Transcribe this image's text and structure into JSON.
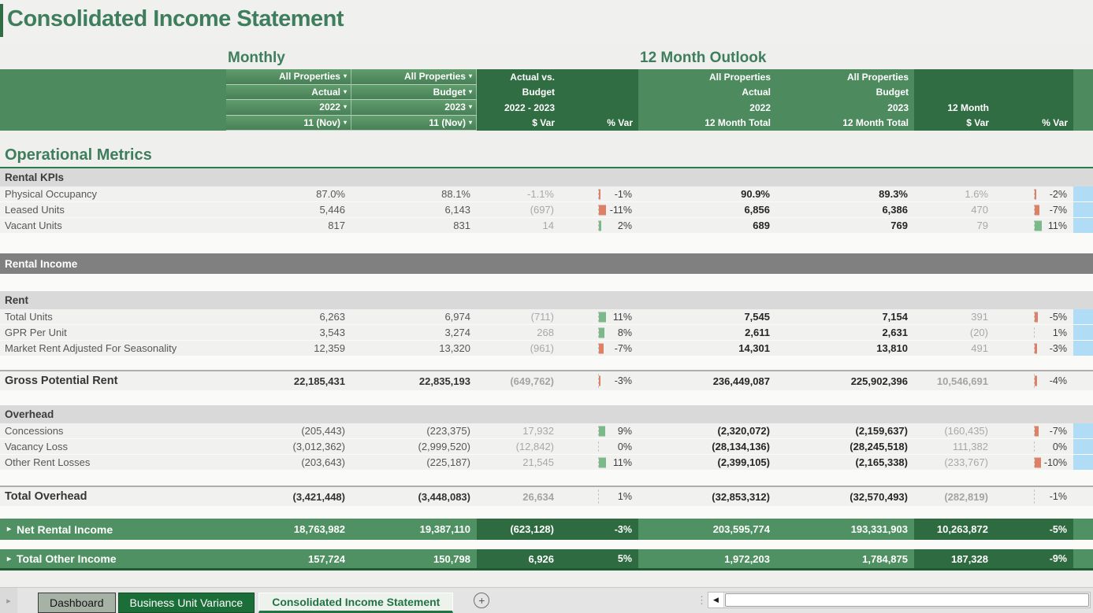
{
  "title": "Consolidated Income Statement",
  "section_labels": {
    "monthly": "Monthly",
    "outlook": "12 Month Outlook"
  },
  "metrics_heading": "Operational Metrics",
  "colors": {
    "accent_green": "#3e7e5c",
    "header_medium": "#4d8b5f",
    "header_dark": "#316d43",
    "row_green_medium": "#4f9162",
    "row_green_dark": "#2f6b41",
    "band_light": "#d9d9d9",
    "band_dark": "#808080",
    "bar_negative": "#dd8066",
    "bar_positive": "#7cb98a",
    "highlight_blue": "#b0dcf6",
    "tab_active_green": "#217346"
  },
  "icons": {
    "dropdown_arrow": "▾",
    "row_expand_arrow": "▸",
    "sheet_nav_arrow": "▸",
    "add_sheet": "+",
    "scroll_left_arrow": "◀",
    "splitter_dots": "⋮"
  },
  "header": {
    "columns": [
      {
        "kind": "blank",
        "tone": "medium",
        "name": "row-label-spacer"
      },
      {
        "kind": "filter",
        "tone": "medium",
        "name": "monthly-actual-filters",
        "items": [
          "All Properties",
          "Actual",
          "2022",
          "11 (Nov)"
        ]
      },
      {
        "kind": "filter",
        "tone": "medium",
        "name": "monthly-budget-filters",
        "items": [
          "All Properties",
          "Budget",
          "2023",
          "11 (Nov)"
        ]
      },
      {
        "kind": "static",
        "tone": "dark",
        "name": "monthly-dollar-var-header",
        "lines": [
          "Actual vs.",
          "Budget",
          "2022 - 2023",
          "$ Var"
        ]
      },
      {
        "kind": "static",
        "tone": "dark",
        "name": "monthly-pct-var-header",
        "lines": [
          "",
          "",
          "",
          "% Var"
        ]
      },
      {
        "kind": "static",
        "tone": "medium",
        "name": "outlook-actual-header",
        "lines": [
          "All Properties",
          "Actual",
          "2022",
          "12 Month Total"
        ]
      },
      {
        "kind": "static",
        "tone": "medium",
        "name": "outlook-budget-header",
        "lines": [
          "All Properties",
          "Budget",
          "2023",
          "12 Month Total"
        ]
      },
      {
        "kind": "static",
        "tone": "dark",
        "name": "outlook-dollar-var-header",
        "lines": [
          "",
          "",
          "12 Month",
          "$ Var"
        ]
      },
      {
        "kind": "static",
        "tone": "dark",
        "name": "outlook-pct-var-header",
        "lines": [
          "",
          "",
          "",
          "% Var"
        ]
      },
      {
        "kind": "blank",
        "tone": "medium",
        "name": "right-edge-strip"
      }
    ]
  },
  "rows": [
    {
      "type": "band",
      "tone": "light",
      "label": "Rental KPIs"
    },
    {
      "type": "data",
      "label": "Physical Occupancy",
      "v1": "87.0%",
      "v2": "88.1%",
      "var1": "-1.1%",
      "pct1": "-1%",
      "pct1_bar": {
        "c": "red",
        "w": 2
      },
      "v5": "90.9%",
      "v6": "89.3%",
      "var2": "1.6%",
      "pct2": "-2%",
      "pct2_bar": {
        "c": "red",
        "w": 2
      },
      "blue": true
    },
    {
      "type": "data",
      "label": "Leased Units",
      "v1": "5,446",
      "v2": "6,143",
      "var1": "(697)",
      "pct1": "-11%",
      "pct1_bar": {
        "c": "red",
        "w": 9
      },
      "v5": "6,856",
      "v6": "6,386",
      "var2": "470",
      "pct2": "-7%",
      "pct2_bar": {
        "c": "red",
        "w": 6
      },
      "blue": true
    },
    {
      "type": "data",
      "label": "Vacant Units",
      "v1": "817",
      "v2": "831",
      "var1": "14",
      "pct1": "2%",
      "pct1_bar": {
        "c": "green",
        "w": 3
      },
      "v5": "689",
      "v6": "769",
      "var2": "79",
      "pct2": "11%",
      "pct2_bar": {
        "c": "green",
        "w": 9
      },
      "blue": true
    },
    {
      "type": "gap",
      "h": 25
    },
    {
      "type": "band",
      "tone": "dark",
      "label": "Rental Income"
    },
    {
      "type": "gap",
      "h": 22
    },
    {
      "type": "band",
      "tone": "light",
      "label": "Rent"
    },
    {
      "type": "data",
      "label": "Total Units",
      "v1": "6,263",
      "v2": "6,974",
      "var1": "(711)",
      "pct1": "11%",
      "pct1_bar": {
        "c": "green",
        "w": 9
      },
      "v5": "7,545",
      "v6": "7,154",
      "var2": "391",
      "pct2": "-5%",
      "pct2_bar": {
        "c": "red",
        "w": 4
      },
      "blue": true
    },
    {
      "type": "data",
      "label": "GPR Per Unit",
      "v1": "3,543",
      "v2": "3,274",
      "var1": "268",
      "pct1": "8%",
      "pct1_bar": {
        "c": "green",
        "w": 7
      },
      "v5": "2,611",
      "v6": "2,631",
      "var2": "(20)",
      "pct2": "1%",
      "pct2_bar": null,
      "blue": true
    },
    {
      "type": "data",
      "label": "Market Rent Adjusted For Seasonality",
      "v1": "12,359",
      "v2": "13,320",
      "var1": "(961)",
      "pct1": "-7%",
      "pct1_bar": {
        "c": "red",
        "w": 6
      },
      "v5": "14,301",
      "v6": "13,810",
      "var2": "491",
      "pct2": "-3%",
      "pct2_bar": {
        "c": "red",
        "w": 3
      },
      "blue": true
    },
    {
      "type": "gap",
      "h": 17
    },
    {
      "type": "total",
      "label": "Gross Potential Rent",
      "v1": "22,185,431",
      "v2": "22,835,193",
      "var1": "(649,762)",
      "pct1": "-3%",
      "pct1_bar": {
        "c": "red",
        "w": 2
      },
      "v5": "236,449,087",
      "v6": "225,902,396",
      "var2": "10,546,691",
      "pct2": "-4%",
      "pct2_bar": {
        "c": "red",
        "w": 3
      },
      "blue": false
    },
    {
      "type": "gap",
      "h": 19
    },
    {
      "type": "band",
      "tone": "light",
      "label": "Overhead"
    },
    {
      "type": "data",
      "label": "Concessions",
      "v1": "(205,443)",
      "v2": "(223,375)",
      "var1": "17,932",
      "pct1": "9%",
      "pct1_bar": {
        "c": "green",
        "w": 8
      },
      "v5": "(2,320,072)",
      "v6": "(2,159,637)",
      "var2": "(160,435)",
      "pct2": "-7%",
      "pct2_bar": {
        "c": "red",
        "w": 5
      },
      "blue": true
    },
    {
      "type": "data",
      "label": "Vacancy Loss",
      "v1": "(3,012,362)",
      "v2": "(2,999,520)",
      "var1": "(12,842)",
      "pct1": "0%",
      "pct1_bar": null,
      "v5": "(28,134,136)",
      "v6": "(28,245,518)",
      "var2": "111,382",
      "pct2": "0%",
      "pct2_bar": null,
      "blue": true
    },
    {
      "type": "data",
      "label": "Other Rent Losses",
      "v1": "(203,643)",
      "v2": "(225,187)",
      "var1": "21,545",
      "pct1": "11%",
      "pct1_bar": {
        "c": "green",
        "w": 9
      },
      "v5": "(2,399,105)",
      "v6": "(2,165,338)",
      "var2": "(233,767)",
      "pct2": "-10%",
      "pct2_bar": {
        "c": "red",
        "w": 8
      },
      "blue": true
    },
    {
      "type": "gap",
      "h": 19
    },
    {
      "type": "total",
      "label": "Total Overhead",
      "v1": "(3,421,448)",
      "v2": "(3,448,083)",
      "var1": "26,634",
      "pct1": "1%",
      "pct1_bar": null,
      "v5": "(32,853,312)",
      "v6": "(32,570,493)",
      "var2": "(282,819)",
      "pct2": "-1%",
      "pct2_bar": null,
      "blue": false
    },
    {
      "type": "gap",
      "h": 16
    },
    {
      "type": "green",
      "label": "Net Rental Income",
      "v1": "18,763,982",
      "v2": "19,387,110",
      "var1": "(623,128)",
      "pct1": "-3%",
      "v5": "203,595,774",
      "v6": "193,331,903",
      "var2": "10,263,872",
      "pct2": "-5%"
    },
    {
      "type": "gap",
      "h": 12
    },
    {
      "type": "green",
      "label": "Total Other Income",
      "v1": "157,724",
      "v2": "150,798",
      "var1": "6,926",
      "pct1": "5%",
      "v5": "1,972,203",
      "v6": "1,784,875",
      "var2": "187,328",
      "pct2": "-9%",
      "bottom_border": true
    }
  ],
  "tab_bar": {
    "tabs": [
      {
        "label": "Dashboard",
        "state": "inactive"
      },
      {
        "label": "Business Unit Variance",
        "state": "green"
      },
      {
        "label": "Consolidated Income Statement",
        "state": "active"
      }
    ]
  }
}
